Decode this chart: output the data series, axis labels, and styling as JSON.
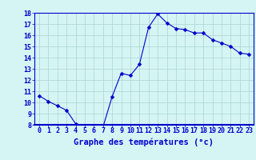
{
  "hours": [
    0,
    1,
    2,
    3,
    4,
    5,
    6,
    7,
    8,
    9,
    10,
    11,
    12,
    13,
    14,
    15,
    16,
    17,
    18,
    19,
    20,
    21,
    22,
    23
  ],
  "temperatures": [
    10.6,
    10.1,
    9.7,
    9.3,
    8.1,
    7.8,
    7.8,
    7.8,
    10.5,
    12.6,
    12.4,
    13.4,
    16.7,
    17.9,
    17.1,
    16.6,
    16.5,
    16.2,
    16.2,
    15.6,
    15.3,
    15.0,
    14.4,
    14.3
  ],
  "line_color": "#0000cc",
  "marker": "D",
  "marker_size": 2.5,
  "bg_color": "#d5f5f5",
  "grid_color": "#b0d8d8",
  "xlabel": "Graphe des températures (°c)",
  "xlabel_color": "#0000cc",
  "xlabel_fontsize": 7.5,
  "tick_color": "#0000cc",
  "tick_fontsize": 6,
  "ylim": [
    8,
    18
  ],
  "yticks": [
    8,
    9,
    10,
    11,
    12,
    13,
    14,
    15,
    16,
    17,
    18
  ],
  "xlim_left": -0.5,
  "xlim_right": 23.5,
  "axis_bar_color": "#0000cc",
  "axis_bar_height": 0.012
}
